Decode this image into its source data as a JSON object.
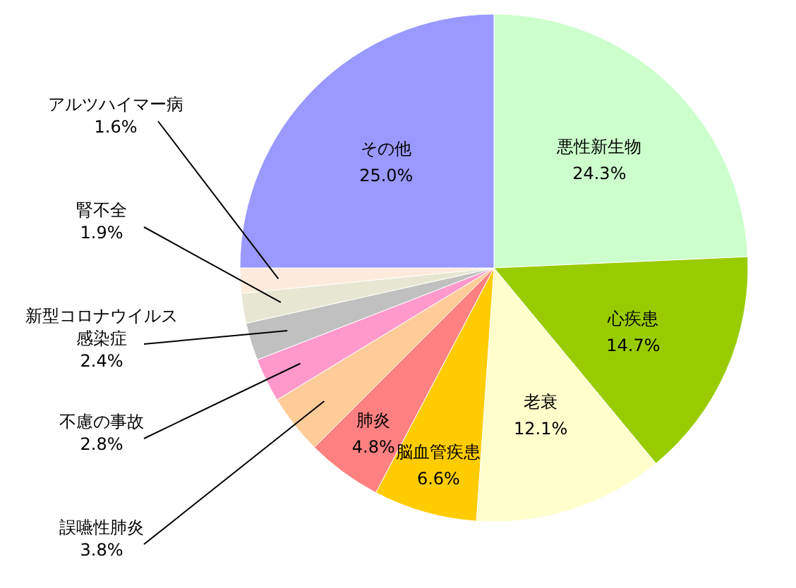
{
  "chart_data": {
    "type": "pie",
    "categories": [
      "悪性新生物",
      "心疾患",
      "老衰",
      "脳血管疾患",
      "肺炎",
      "誤嚥性肺炎",
      "不慮の事故",
      "新型コロナウイルス感染症",
      "腎不全",
      "アルツハイマー病",
      "その他"
    ],
    "values": [
      24.3,
      14.7,
      12.1,
      6.6,
      4.8,
      3.8,
      2.8,
      2.4,
      1.9,
      1.6,
      25.0
    ],
    "value_labels": [
      "24.3%",
      "14.7%",
      "12.1%",
      "6.6%",
      "4.8%",
      "3.8%",
      "2.8%",
      "2.4%",
      "1.9%",
      "1.6%",
      "25.0%"
    ],
    "colors": [
      "#ccffcc",
      "#99cc00",
      "#ffffcc",
      "#ffcc00",
      "#ff8080",
      "#ffcc99",
      "#ff99cc",
      "#c0c0c0",
      "#e6e6d2",
      "#fdeada",
      "#9999ff"
    ]
  }
}
